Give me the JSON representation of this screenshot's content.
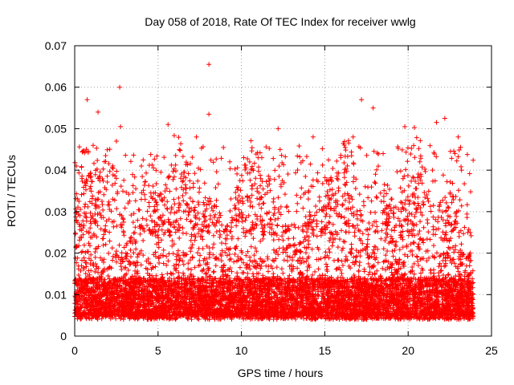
{
  "chart_data": {
    "type": "scatter",
    "title": "Day 058 of 2018, Rate Of TEC Index for receiver wwlg",
    "xlabel": "GPS time / hours",
    "ylabel": "ROTI / TECUs",
    "xlim": [
      0,
      25
    ],
    "ylim": [
      0,
      0.07
    ],
    "x_ticks": [
      0,
      5,
      10,
      15,
      20,
      25
    ],
    "y_ticks": [
      0,
      0.01,
      0.02,
      0.03,
      0.04,
      0.05,
      0.06,
      0.07
    ],
    "x_tick_labels": [
      "0",
      "5",
      "10",
      "15",
      "20",
      "25"
    ],
    "y_tick_labels": [
      "0",
      "0.01",
      "0.02",
      "0.03",
      "0.04",
      "0.05",
      "0.06",
      "0.07"
    ],
    "grid": true,
    "marker": "+",
    "color": "#ff0000",
    "data_x_range": [
      0,
      23.9
    ],
    "baseline_band": [
      0.004,
      0.014
    ],
    "notable_points": [
      {
        "x": 0.75,
        "y": 0.057
      },
      {
        "x": 1.4,
        "y": 0.054
      },
      {
        "x": 2.7,
        "y": 0.06
      },
      {
        "x": 2.75,
        "y": 0.0505
      },
      {
        "x": 5.6,
        "y": 0.051
      },
      {
        "x": 8.05,
        "y": 0.0655
      },
      {
        "x": 8.05,
        "y": 0.0535
      },
      {
        "x": 12.2,
        "y": 0.05
      },
      {
        "x": 17.2,
        "y": 0.057
      },
      {
        "x": 17.9,
        "y": 0.055
      },
      {
        "x": 19.8,
        "y": 0.0505
      },
      {
        "x": 21.7,
        "y": 0.0515
      },
      {
        "x": 22.2,
        "y": 0.0525
      },
      {
        "x": 2.5,
        "y": 0.047
      },
      {
        "x": 7.3,
        "y": 0.048
      },
      {
        "x": 14.3,
        "y": 0.048
      },
      {
        "x": 16.7,
        "y": 0.048
      },
      {
        "x": 23.0,
        "y": 0.048
      },
      {
        "x": 0.1,
        "y": 0.041
      },
      {
        "x": 4.0,
        "y": 0.041
      },
      {
        "x": 9.3,
        "y": 0.042
      },
      {
        "x": 11.0,
        "y": 0.043
      },
      {
        "x": 18.5,
        "y": 0.044
      },
      {
        "x": 20.7,
        "y": 0.042
      },
      {
        "x": 23.2,
        "y": 0.04
      }
    ]
  }
}
